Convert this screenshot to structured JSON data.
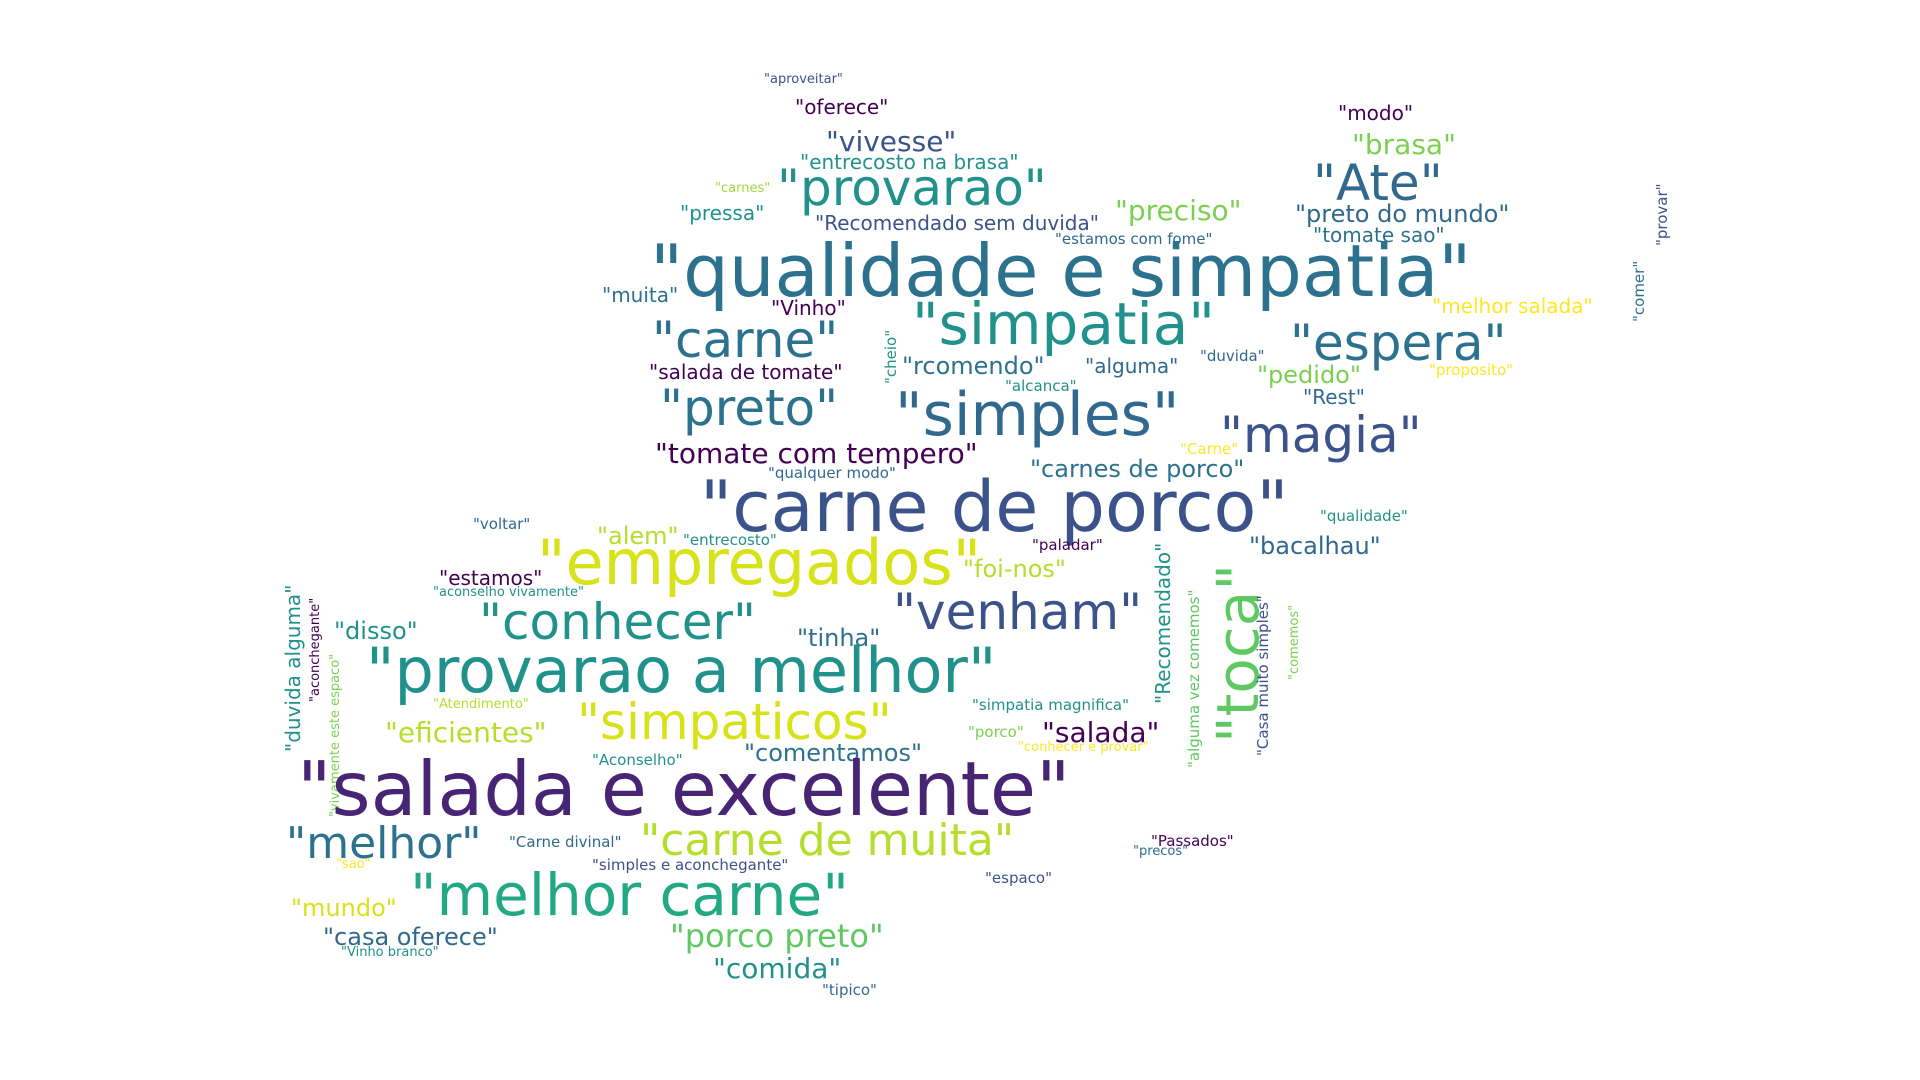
{
  "words": [
    {
      "text": "\"aproveitar\"",
      "color": "#3b528b"
    },
    {
      "text": "\"oferece\"",
      "color": "#440154"
    },
    {
      "text": "\"modo\"",
      "color": "#440154"
    },
    {
      "text": "\"vivesse\"",
      "color": "#3b528b"
    },
    {
      "text": "\"brasa\"",
      "color": "#7ad151"
    },
    {
      "text": "\"entrecosto na brasa\"",
      "color": "#21918c"
    },
    {
      "text": "\"Ate\"",
      "color": "#31688e"
    },
    {
      "text": "\"provarao\"",
      "color": "#21918c"
    },
    {
      "text": "\"carnes\"",
      "color": "#a0da39"
    },
    {
      "text": "\"preciso\"",
      "color": "#7ad151"
    },
    {
      "text": "\"preto do mundo\"",
      "color": "#31688e"
    },
    {
      "text": "\"pressa\"",
      "color": "#21918c"
    },
    {
      "text": "\"Recomendado sem duvida\"",
      "color": "#3b528b"
    },
    {
      "text": "\"tomate sao\"",
      "color": "#2c728e"
    },
    {
      "text": "\"estamos com fome\"",
      "color": "#31688e"
    },
    {
      "text": "\"qualidade e simpatia\"",
      "color": "#2c728e"
    },
    {
      "text": "\"comer\"",
      "color": "#2c728e"
    },
    {
      "text": "\"provar\"",
      "color": "#3b528b"
    },
    {
      "text": "\"muita\"",
      "color": "#2c728e"
    },
    {
      "text": "\"Vinho\"",
      "color": "#440154"
    },
    {
      "text": "\"melhor salada\"",
      "color": "#fde725"
    },
    {
      "text": "\"carne\"",
      "color": "#2c728e"
    },
    {
      "text": "\"simpatia\"",
      "color": "#21918c"
    },
    {
      "text": "\"espera\"",
      "color": "#2c728e"
    },
    {
      "text": "\"cheio\"",
      "color": "#21918c"
    },
    {
      "text": "\"duvida\"",
      "color": "#31688e"
    },
    {
      "text": "\"salada de tomate\"",
      "color": "#440154"
    },
    {
      "text": "\"rcomendo\"",
      "color": "#2c728e"
    },
    {
      "text": "\"alguma\"",
      "color": "#31688e"
    },
    {
      "text": "\"pedido\"",
      "color": "#7ad151"
    },
    {
      "text": "\"proposito\"",
      "color": "#fde725"
    },
    {
      "text": "\"alcanca\"",
      "color": "#21918c"
    },
    {
      "text": "\"Rest\"",
      "color": "#31688e"
    },
    {
      "text": "\"preto\"",
      "color": "#2c728e"
    },
    {
      "text": "\"simples\"",
      "color": "#31688e"
    },
    {
      "text": "\"magia\"",
      "color": "#3b528b"
    },
    {
      "text": "\"Carne\"",
      "color": "#fde725"
    },
    {
      "text": "\"tomate com tempero\"",
      "color": "#440154"
    },
    {
      "text": "\"qualquer modo\"",
      "color": "#31688e"
    },
    {
      "text": "\"carnes de porco\"",
      "color": "#2c728e"
    },
    {
      "text": "\"carne de porco\"",
      "color": "#3b528b"
    },
    {
      "text": "\"qualidade\"",
      "color": "#21918c"
    },
    {
      "text": "\"voltar\"",
      "color": "#31688e"
    },
    {
      "text": "\"alem\"",
      "color": "#b5de2b"
    },
    {
      "text": "\"entrecosto\"",
      "color": "#21918c"
    },
    {
      "text": "\"paladar\"",
      "color": "#440154"
    },
    {
      "text": "\"bacalhau\"",
      "color": "#31688e"
    },
    {
      "text": "\"Recomendado\"",
      "color": "#21918c"
    },
    {
      "text": "\"empregados\"",
      "color": "#d8e219"
    },
    {
      "text": "\"duvida alguma\"",
      "color": "#21918c"
    },
    {
      "text": "\"estamos\"",
      "color": "#440154"
    },
    {
      "text": "\"foi-nos\"",
      "color": "#b5de2b"
    },
    {
      "text": "\"toca\"",
      "color": "#5ec962"
    },
    {
      "text": "\"alguma vez comemos\"",
      "color": "#5ec962"
    },
    {
      "text": "\"Casa muito simples\"",
      "color": "#3b528b"
    },
    {
      "text": "\"aconselho vivamente\"",
      "color": "#21918c"
    },
    {
      "text": "\"comemos\"",
      "color": "#7ad151"
    },
    {
      "text": "\"aconchegante\"",
      "color": "#440154"
    },
    {
      "text": "\"venham\"",
      "color": "#3b528b"
    },
    {
      "text": "\"conhecer\"",
      "color": "#21918c"
    },
    {
      "text": "\"disso\"",
      "color": "#21918c"
    },
    {
      "text": "\"tinha\"",
      "color": "#2c728e"
    },
    {
      "text": "\"vivamente este espaco\"",
      "color": "#7ad151"
    },
    {
      "text": "\"provarao a melhor\"",
      "color": "#21918c"
    },
    {
      "text": "\"Atendimento\"",
      "color": "#b5de2b"
    },
    {
      "text": "\"simpatia magnifica\"",
      "color": "#21918c"
    },
    {
      "text": "\"simpaticos\"",
      "color": "#d8e219"
    },
    {
      "text": "\"eficientes\"",
      "color": "#b5de2b"
    },
    {
      "text": "\"porco\"",
      "color": "#7ad151"
    },
    {
      "text": "\"salada\"",
      "color": "#440154"
    },
    {
      "text": "\"conhecer e provar\"",
      "color": "#fde725"
    },
    {
      "text": "\"Aconselho\"",
      "color": "#21918c"
    },
    {
      "text": "\"comentamos\"",
      "color": "#2c728e"
    },
    {
      "text": "\"salada e excelente\"",
      "color": "#482475"
    },
    {
      "text": "\"melhor\"",
      "color": "#2c728e"
    },
    {
      "text": "\"Carne divinal\"",
      "color": "#31688e"
    },
    {
      "text": "\"carne de muita\"",
      "color": "#b5de2b"
    },
    {
      "text": "\"Passados\"",
      "color": "#440154"
    },
    {
      "text": "\"precos\"",
      "color": "#31688e"
    },
    {
      "text": "\"sao\"",
      "color": "#fde725"
    },
    {
      "text": "\"simples e aconchegante\"",
      "color": "#3b528b"
    },
    {
      "text": "\"melhor carne\"",
      "color": "#22a884"
    },
    {
      "text": "\"espaco\"",
      "color": "#3b528b"
    },
    {
      "text": "\"mundo\"",
      "color": "#d8e219"
    },
    {
      "text": "\"casa oferece\"",
      "color": "#31688e"
    },
    {
      "text": "\"porco preto\"",
      "color": "#5ec962"
    },
    {
      "text": "\"Vinho branco\"",
      "color": "#21918c"
    },
    {
      "text": "\"comida\"",
      "color": "#21918c"
    },
    {
      "text": "\"tipico\"",
      "color": "#31688e"
    }
  ]
}
